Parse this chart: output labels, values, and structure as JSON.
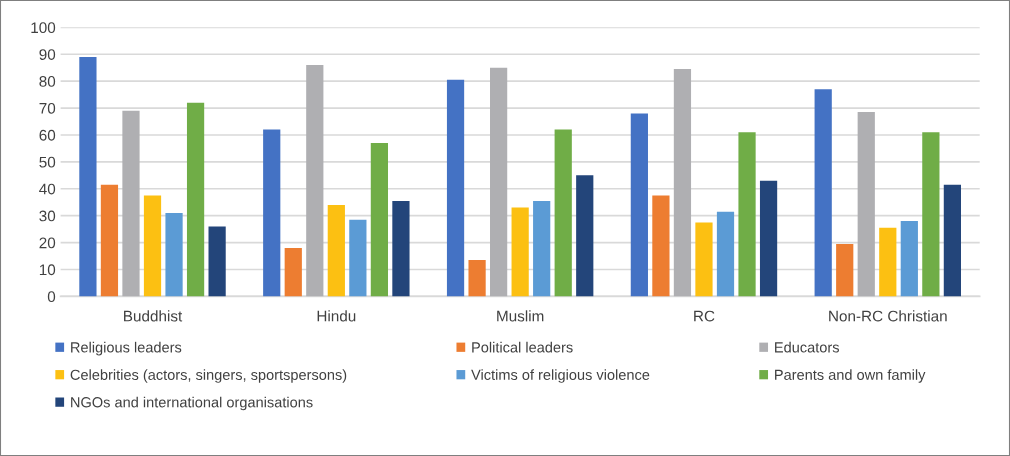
{
  "chart_data": {
    "type": "bar",
    "categories": [
      "Buddhist",
      "Hindu",
      "Muslim",
      "RC",
      "Non-RC Christian"
    ],
    "series": [
      {
        "name": "Religious leaders",
        "color": "#4472c4",
        "values": [
          89,
          62,
          80.5,
          68,
          77
        ]
      },
      {
        "name": "Political leaders",
        "color": "#ed7d31",
        "values": [
          41.5,
          18,
          13.5,
          37.5,
          19.5
        ]
      },
      {
        "name": "Educators",
        "color": "#afafb2",
        "values": [
          69,
          86,
          85,
          84.5,
          68.5
        ]
      },
      {
        "name": "Celebrities (actors, singers, sportspersons)",
        "color": "#fcc012",
        "values": [
          37.5,
          34,
          33,
          27.5,
          25.5
        ]
      },
      {
        "name": "Victims of religious violence",
        "color": "#5b9bd5",
        "values": [
          31,
          28.5,
          35.5,
          31.5,
          28
        ]
      },
      {
        "name": "Parents and own family",
        "color": "#70ad47",
        "values": [
          72,
          57,
          62,
          61,
          61
        ]
      },
      {
        "name": "NGOs and international organisations",
        "color": "#23457a",
        "values": [
          26,
          35.5,
          45,
          43,
          41.5
        ]
      }
    ],
    "ylim": [
      0,
      100
    ],
    "yticks": [
      0,
      10,
      20,
      30,
      40,
      50,
      60,
      70,
      80,
      90,
      100
    ],
    "grid": "y",
    "legend": "bottom"
  }
}
